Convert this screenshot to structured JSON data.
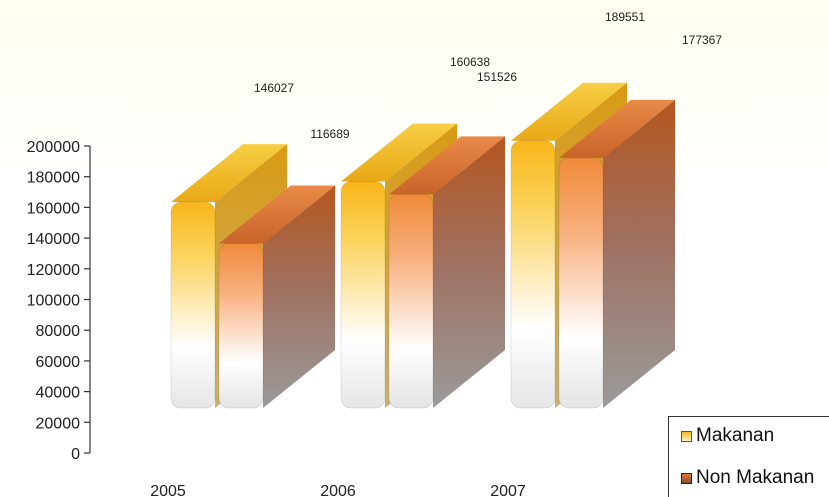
{
  "chart_data": {
    "type": "bar",
    "categories": [
      "2005",
      "2006",
      "2007"
    ],
    "series": [
      {
        "name": "Makanan",
        "values": [
          146027,
          160638,
          189551
        ]
      },
      {
        "name": "Non Makanan",
        "values": [
          116689,
          151526,
          177367
        ]
      }
    ],
    "ylim": [
      0,
      200000
    ],
    "yticks": [
      0,
      20000,
      40000,
      60000,
      80000,
      100000,
      120000,
      140000,
      160000,
      180000,
      200000
    ],
    "legend_position": "bottom-right",
    "colors": {
      "Makanan": "#f5b820",
      "Non Makanan": "#e07a3a"
    }
  }
}
